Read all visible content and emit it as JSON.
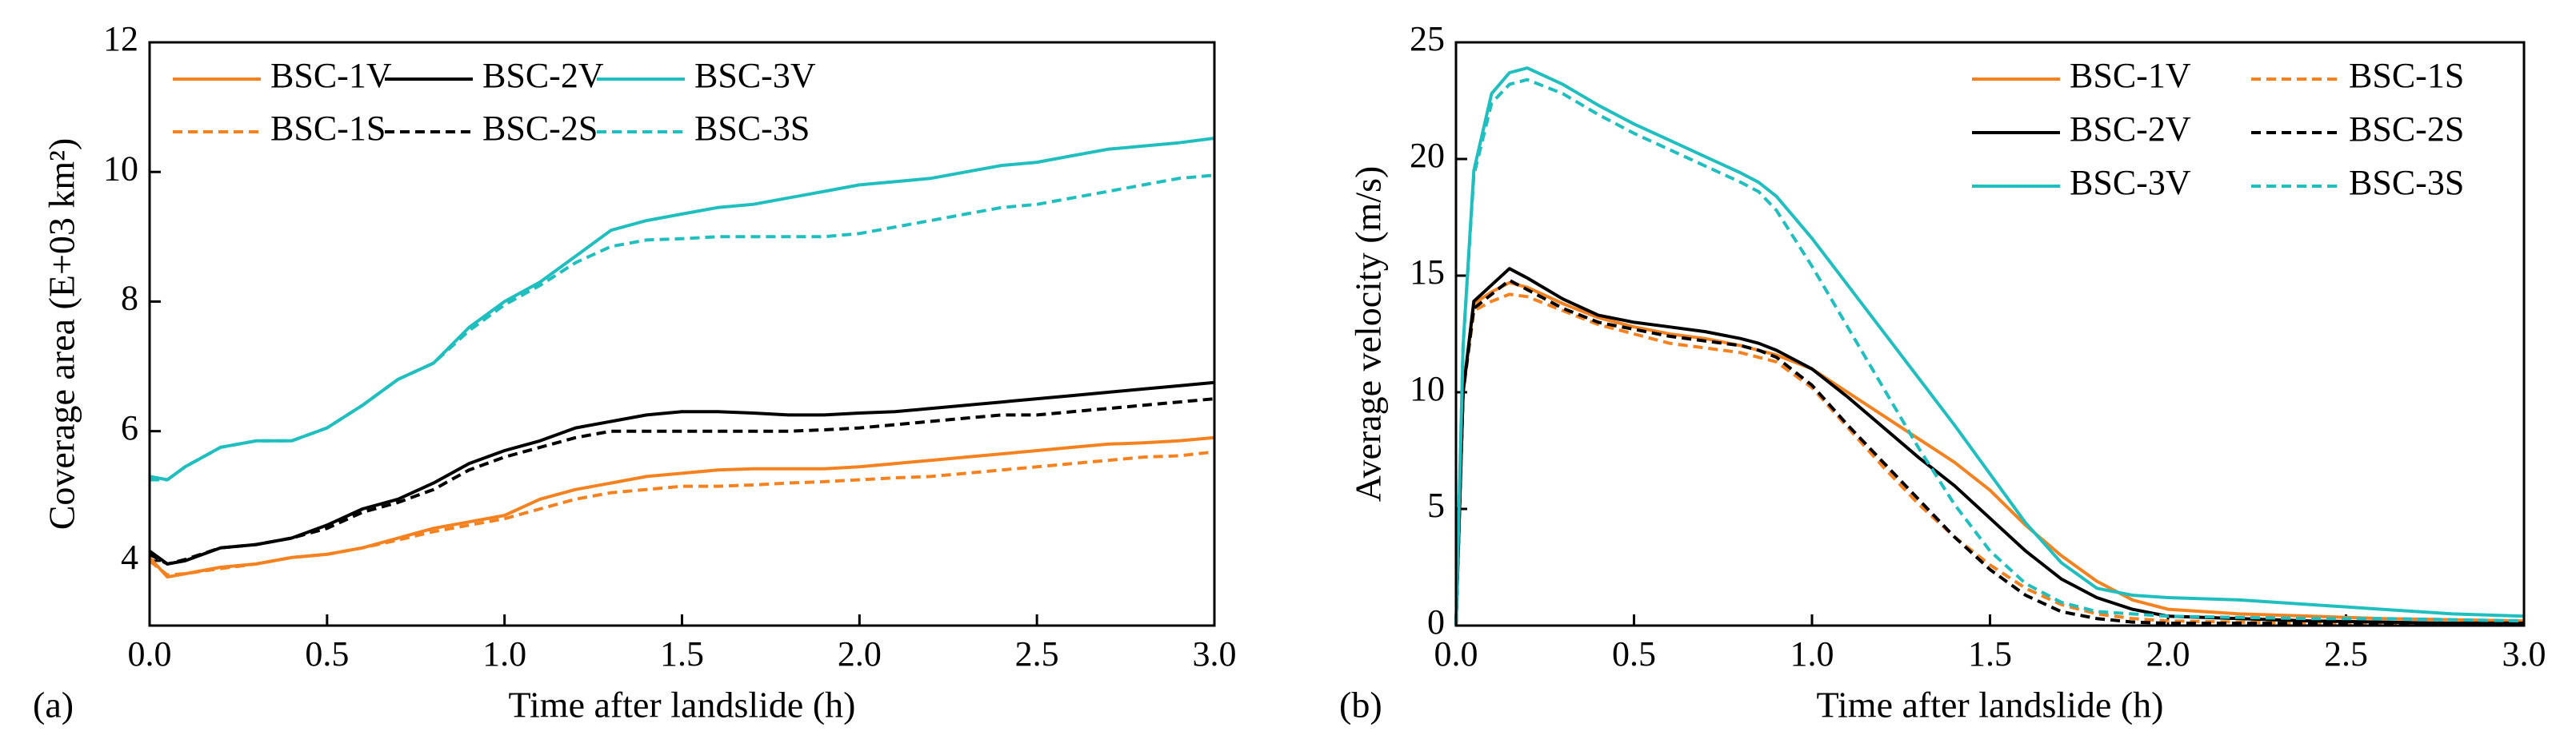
{
  "chart_data": [
    {
      "type": "line",
      "label": "(a)",
      "xlabel": "Time after landslide (h)",
      "ylabel": "Coverage area (E+03 km²)",
      "xlim": [
        0,
        3
      ],
      "xticks": [
        {
          "value": 0,
          "label": "0.0"
        },
        {
          "value": 0.5,
          "label": "0.5"
        },
        {
          "value": 1,
          "label": "1.0"
        },
        {
          "value": 1.5,
          "label": "1.5"
        },
        {
          "value": 2,
          "label": "2.0"
        },
        {
          "value": 2.5,
          "label": "2.5"
        },
        {
          "value": 3,
          "label": "3.0"
        }
      ],
      "ylim": [
        3,
        12
      ],
      "yticks": [
        4,
        6,
        8,
        10,
        12
      ],
      "legend": "upper left",
      "x": [
        0,
        0.05,
        0.1,
        0.2,
        0.3,
        0.4,
        0.5,
        0.6,
        0.7,
        0.8,
        0.9,
        1.0,
        1.1,
        1.2,
        1.3,
        1.4,
        1.5,
        1.6,
        1.7,
        1.8,
        1.9,
        2.0,
        2.1,
        2.2,
        2.3,
        2.4,
        2.5,
        2.6,
        2.7,
        2.8,
        2.9,
        3.0
      ],
      "series": [
        {
          "name": "BSC-1V",
          "color": "#f5821f",
          "linestyle": "solid",
          "values": [
            4.05,
            3.75,
            3.8,
            3.9,
            3.95,
            4.05,
            4.1,
            4.2,
            4.35,
            4.5,
            4.6,
            4.7,
            4.95,
            5.1,
            5.2,
            5.3,
            5.35,
            5.4,
            5.42,
            5.42,
            5.42,
            5.45,
            5.5,
            5.55,
            5.6,
            5.65,
            5.7,
            5.75,
            5.8,
            5.82,
            5.85,
            5.9
          ]
        },
        {
          "name": "BSC-1S",
          "color": "#f5821f",
          "linestyle": "dashed",
          "values": [
            4.0,
            3.78,
            3.8,
            3.88,
            3.95,
            4.05,
            4.1,
            4.2,
            4.32,
            4.45,
            4.55,
            4.65,
            4.8,
            4.95,
            5.05,
            5.1,
            5.15,
            5.15,
            5.17,
            5.2,
            5.22,
            5.25,
            5.28,
            5.3,
            5.35,
            5.4,
            5.45,
            5.5,
            5.55,
            5.6,
            5.62,
            5.68
          ]
        },
        {
          "name": "BSC-2V",
          "color": "#000000",
          "linestyle": "solid",
          "values": [
            4.15,
            3.95,
            4.0,
            4.2,
            4.25,
            4.35,
            4.55,
            4.8,
            4.95,
            5.2,
            5.5,
            5.7,
            5.85,
            6.05,
            6.15,
            6.25,
            6.3,
            6.3,
            6.28,
            6.25,
            6.25,
            6.28,
            6.3,
            6.35,
            6.4,
            6.45,
            6.5,
            6.55,
            6.6,
            6.65,
            6.7,
            6.75
          ]
        },
        {
          "name": "BSC-2S",
          "color": "#000000",
          "linestyle": "dashed",
          "values": [
            4.1,
            3.95,
            4.02,
            4.2,
            4.25,
            4.35,
            4.5,
            4.75,
            4.9,
            5.1,
            5.4,
            5.6,
            5.75,
            5.9,
            6.0,
            6.0,
            6.0,
            6.0,
            6.0,
            6.0,
            6.02,
            6.05,
            6.1,
            6.15,
            6.2,
            6.25,
            6.25,
            6.3,
            6.35,
            6.4,
            6.45,
            6.5
          ]
        },
        {
          "name": "BSC-3V",
          "color": "#1fbfbf",
          "linestyle": "solid",
          "values": [
            5.3,
            5.25,
            5.45,
            5.75,
            5.85,
            5.85,
            6.05,
            6.4,
            6.8,
            7.05,
            7.6,
            8.0,
            8.3,
            8.7,
            9.1,
            9.25,
            9.35,
            9.45,
            9.5,
            9.6,
            9.7,
            9.8,
            9.85,
            9.9,
            10.0,
            10.1,
            10.15,
            10.25,
            10.35,
            10.4,
            10.45,
            10.52
          ]
        },
        {
          "name": "BSC-3S",
          "color": "#1fbfbf",
          "linestyle": "dashed",
          "values": [
            5.25,
            5.25,
            5.45,
            5.75,
            5.85,
            5.85,
            6.05,
            6.4,
            6.8,
            7.05,
            7.55,
            7.95,
            8.25,
            8.6,
            8.85,
            8.95,
            8.97,
            9.0,
            9.0,
            9.0,
            9.0,
            9.05,
            9.15,
            9.25,
            9.35,
            9.45,
            9.5,
            9.6,
            9.7,
            9.8,
            9.9,
            9.95
          ]
        }
      ]
    },
    {
      "type": "line",
      "label": "(b)",
      "xlabel": "Time after landslide (h)",
      "ylabel": "Average velocity (m/s)",
      "xlim": [
        0,
        3
      ],
      "xticks": [
        {
          "value": 0,
          "label": "0.0"
        },
        {
          "value": 0.5,
          "label": "0.5"
        },
        {
          "value": 1,
          "label": "1.0"
        },
        {
          "value": 1.5,
          "label": "1.5"
        },
        {
          "value": 2,
          "label": "2.0"
        },
        {
          "value": 2.5,
          "label": "2.5"
        },
        {
          "value": 3,
          "label": "3.0"
        }
      ],
      "ylim": [
        0,
        25
      ],
      "yticks": [
        0,
        5,
        10,
        15,
        20,
        25
      ],
      "legend": "upper right",
      "x": [
        0,
        0.02,
        0.05,
        0.1,
        0.15,
        0.2,
        0.3,
        0.4,
        0.5,
        0.6,
        0.7,
        0.8,
        0.85,
        0.9,
        1.0,
        1.1,
        1.2,
        1.3,
        1.4,
        1.5,
        1.6,
        1.7,
        1.8,
        1.9,
        2.0,
        2.2,
        2.4,
        2.6,
        2.8,
        3.0
      ],
      "series": [
        {
          "name": "BSC-1V",
          "color": "#f5821f",
          "linestyle": "solid",
          "values": [
            0,
            10,
            13.8,
            14.3,
            14.7,
            14.5,
            13.8,
            13.2,
            12.8,
            12.5,
            12.3,
            12.0,
            11.8,
            11.6,
            11.0,
            10.0,
            9.0,
            8.0,
            7.0,
            5.8,
            4.3,
            3.0,
            1.9,
            1.1,
            0.7,
            0.5,
            0.4,
            0.3,
            0.25,
            0.2
          ]
        },
        {
          "name": "BSC-1S",
          "color": "#f5821f",
          "linestyle": "dashed",
          "values": [
            0,
            10,
            13.5,
            13.9,
            14.2,
            14.1,
            13.5,
            12.9,
            12.5,
            12.1,
            11.9,
            11.7,
            11.5,
            11.3,
            10.2,
            8.5,
            6.8,
            5.2,
            3.8,
            2.6,
            1.6,
            0.9,
            0.5,
            0.3,
            0.2,
            0.15,
            0.1,
            0.1,
            0.1,
            0.1
          ]
        },
        {
          "name": "BSC-2V",
          "color": "#000000",
          "linestyle": "solid",
          "values": [
            0,
            10,
            13.9,
            14.6,
            15.3,
            14.9,
            14.0,
            13.3,
            13.0,
            12.8,
            12.6,
            12.3,
            12.1,
            11.8,
            11.0,
            9.8,
            8.5,
            7.2,
            6.0,
            4.6,
            3.2,
            2.0,
            1.2,
            0.7,
            0.4,
            0.3,
            0.2,
            0.15,
            0.1,
            0.1
          ]
        },
        {
          "name": "BSC-2S",
          "color": "#000000",
          "linestyle": "dashed",
          "values": [
            0,
            10,
            13.6,
            14.2,
            14.8,
            14.4,
            13.6,
            13.0,
            12.7,
            12.4,
            12.2,
            12.0,
            11.8,
            11.5,
            10.3,
            8.6,
            7.0,
            5.4,
            3.8,
            2.4,
            1.3,
            0.6,
            0.3,
            0.15,
            0.1,
            0.1,
            0.1,
            0.1,
            0.1,
            0.1
          ]
        },
        {
          "name": "BSC-3V",
          "color": "#1fbfbf",
          "linestyle": "solid",
          "values": [
            0,
            12,
            19.5,
            22.8,
            23.7,
            23.9,
            23.2,
            22.3,
            21.5,
            20.8,
            20.1,
            19.4,
            19.0,
            18.4,
            16.6,
            14.6,
            12.6,
            10.6,
            8.6,
            6.5,
            4.4,
            2.7,
            1.6,
            1.3,
            1.2,
            1.1,
            0.9,
            0.7,
            0.5,
            0.4
          ]
        },
        {
          "name": "BSC-3S",
          "color": "#1fbfbf",
          "linestyle": "dashed",
          "values": [
            0,
            12,
            19.3,
            22.4,
            23.2,
            23.4,
            22.8,
            21.9,
            21.1,
            20.4,
            19.7,
            19.0,
            18.6,
            17.8,
            15.4,
            12.8,
            10.2,
            7.6,
            5.2,
            3.2,
            1.8,
            1.0,
            0.6,
            0.5,
            0.4,
            0.35,
            0.3,
            0.3,
            0.25,
            0.2
          ]
        }
      ]
    }
  ]
}
